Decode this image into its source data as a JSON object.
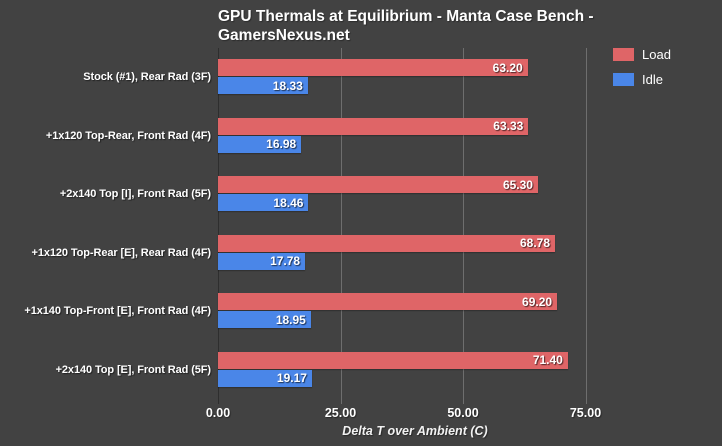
{
  "title": {
    "lines": [
      "GPU Thermals at Equilibrium - Manta Case Bench -",
      "GamersNexus.net"
    ]
  },
  "colors": {
    "background": "#424242",
    "text": "#ffffff",
    "gridline": "#6e6e6e",
    "axis_line": "#2e2e2e",
    "load_bar": "#df6567",
    "idle_bar": "#4a86e8"
  },
  "chart_data": {
    "type": "bar",
    "orientation": "horizontal",
    "title": "GPU Thermals at Equilibrium - Manta Case Bench - GamersNexus.net",
    "xlabel": "Delta T over Ambient (C)",
    "xlim": [
      0,
      100
    ],
    "xticks": [
      {
        "value": 0,
        "label": "0.00"
      },
      {
        "value": 25,
        "label": "25.00"
      },
      {
        "value": 50,
        "label": "50.00"
      },
      {
        "value": 75,
        "label": "75.00"
      }
    ],
    "grid": "vertical-only",
    "legend_position": "top-right",
    "value_label_decimals": 2,
    "categories": [
      "Stock (#1), Rear Rad (3F)",
      "+1x120 Top-Rear, Front Rad (4F)",
      "+2x140 Top [I], Front Rad (5F)",
      "+1x120 Top-Rear [E], Rear Rad (4F)",
      "+1x140 Top-Front [E], Front Rad (4F)",
      "+2x140 Top [E], Front Rad (5F)"
    ],
    "series": [
      {
        "name": "Load",
        "color": "#df6567",
        "values": [
          63.2,
          63.33,
          65.3,
          68.78,
          69.2,
          71.4
        ]
      },
      {
        "name": "Idle",
        "color": "#4a86e8",
        "values": [
          18.33,
          16.98,
          18.46,
          17.78,
          18.95,
          19.17
        ]
      }
    ]
  }
}
